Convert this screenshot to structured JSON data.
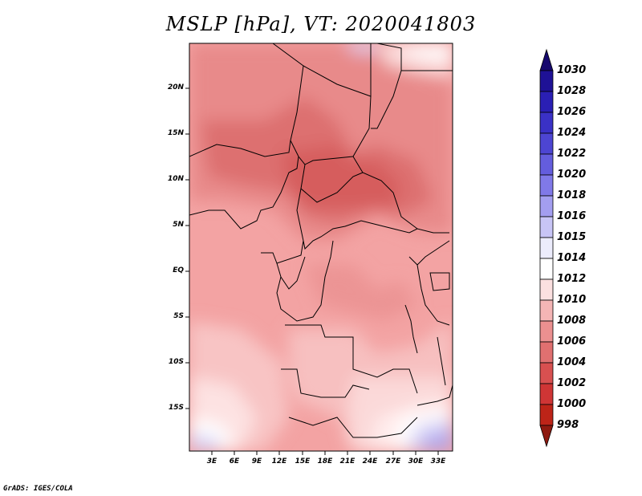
{
  "title": "MSLP [hPa], VT: 2020041803",
  "credit": "GrADS: IGES/COLA",
  "colors": {
    "low": "#8b1d14",
    "mid_low": "#e07070",
    "neutral": "#ffffff",
    "mid_high": "#a89cf5",
    "high": "#1a0d8c"
  },
  "map": {
    "lat_labels": [
      "20N",
      "15N",
      "10N",
      "5N",
      "EQ",
      "5S",
      "10S",
      "15S"
    ],
    "lon_labels": [
      "3E",
      "6E",
      "9E",
      "12E",
      "15E",
      "18E",
      "21E",
      "24E",
      "27E",
      "30E",
      "33E"
    ]
  },
  "colorbar": {
    "levels": [
      "1030",
      "1028",
      "1026",
      "1024",
      "1022",
      "1020",
      "1018",
      "1016",
      "1015",
      "1014",
      "1012",
      "1010",
      "1008",
      "1006",
      "1004",
      "1002",
      "1000",
      "998"
    ],
    "colors": [
      "#16086e",
      "#1e1196",
      "#2a1fb4",
      "#3a31c6",
      "#4d45d2",
      "#645ddd",
      "#8079e8",
      "#a39ef0",
      "#c8c5f6",
      "#ececfc",
      "#ffffff",
      "#fbe0e0",
      "#f4b5b5",
      "#eb9090",
      "#e07070",
      "#d85050",
      "#cf3535",
      "#bd2418",
      "#8e1a10"
    ]
  }
}
